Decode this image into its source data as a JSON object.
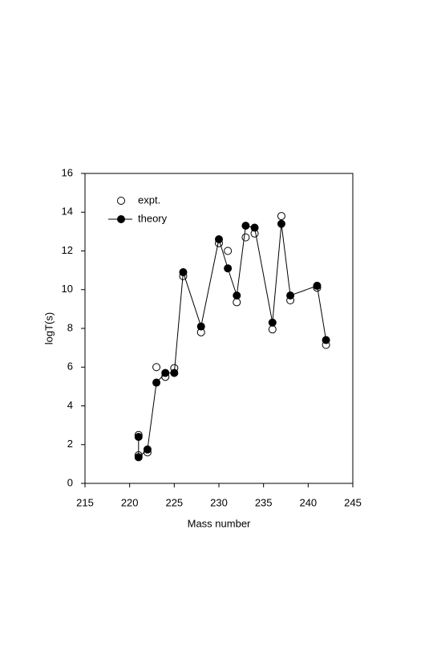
{
  "chart_data": {
    "type": "scatter",
    "xlabel": "Mass number",
    "ylabel": "logT(s)",
    "xlim": [
      215,
      245
    ],
    "xticks": [
      215,
      220,
      225,
      230,
      235,
      240,
      245
    ],
    "ylim": [
      0,
      16
    ],
    "yticks": [
      0,
      2,
      4,
      6,
      8,
      10,
      12,
      14,
      16
    ],
    "legend": "upper left",
    "series": [
      {
        "name": "expt.",
        "color": "#000000",
        "marker": "open",
        "line": false,
        "x": [
          221,
          221,
          222,
          223,
          224,
          225,
          226,
          228,
          230,
          231,
          232,
          233,
          234,
          236,
          237,
          238,
          241,
          242
        ],
        "values": [
          2.5,
          1.45,
          1.6,
          6.0,
          5.5,
          5.95,
          10.7,
          7.8,
          12.4,
          12.0,
          9.35,
          12.7,
          12.9,
          7.95,
          13.8,
          9.45,
          10.1,
          7.15
        ]
      },
      {
        "name": "theory",
        "color": "#000000",
        "marker": "filled",
        "line": true,
        "x": [
          221,
          221,
          222,
          223,
          224,
          225,
          226,
          228,
          230,
          231,
          232,
          233,
          234,
          236,
          237,
          238,
          241,
          242
        ],
        "values": [
          2.4,
          1.35,
          1.75,
          5.2,
          5.7,
          5.7,
          10.9,
          8.1,
          12.6,
          11.1,
          9.7,
          13.3,
          13.2,
          8.3,
          13.4,
          9.7,
          10.2,
          7.4
        ]
      }
    ]
  }
}
